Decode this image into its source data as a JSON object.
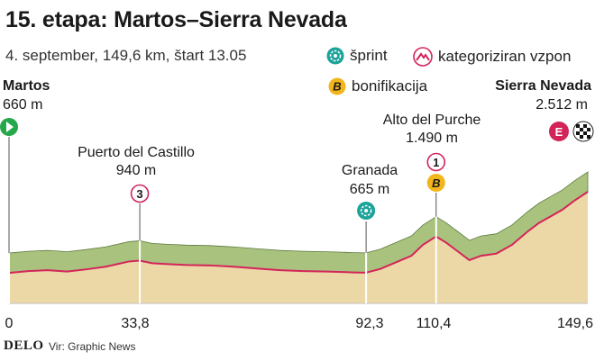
{
  "header": {
    "title": "15. etapa: Martos–Sierra Nevada",
    "subtitle": "4. september, 149,6 km, štart 13.05"
  },
  "legend": {
    "sprint": "šprint",
    "climb": "kategoriziran vzpon",
    "bonus": "bonifikacija"
  },
  "points": {
    "start": {
      "name": "Martos",
      "alt": "660 m"
    },
    "castillo": {
      "name": "Puerto del Castillo",
      "alt": "940 m",
      "category": "3"
    },
    "granada": {
      "name": "Granada",
      "alt": "665 m"
    },
    "purche": {
      "name": "Alto del Purche",
      "alt": "1.490 m",
      "category": "1",
      "bonus": "B"
    },
    "finish": {
      "name": "Sierra Nevada",
      "alt": "2.512 m",
      "category": "E"
    }
  },
  "km_labels": [
    "0",
    "33,8",
    "92,3",
    "110,4",
    "149,6"
  ],
  "footer": {
    "brand": "DELO",
    "source": "Vir: Graphic News"
  },
  "colors": {
    "profile_fill": "#ecd8a6",
    "profile_top": "#a9c37e",
    "profile_dark": "#5d7a3f",
    "profile_line": "#d3245a",
    "sprint": "#1ba39a",
    "bonus": "#f2b61c",
    "start": "#25a84a"
  },
  "chart_data": {
    "type": "area",
    "x_unit": "km",
    "y_unit": "m",
    "xlim": [
      0,
      149.6
    ],
    "x": [
      0,
      5,
      10,
      15,
      20,
      25,
      28,
      31,
      33.8,
      37,
      41,
      46,
      52,
      58,
      64,
      70,
      76,
      82,
      86,
      89,
      92.3,
      96,
      100,
      104,
      107,
      110.4,
      113,
      116,
      119,
      122,
      126,
      130,
      134,
      137,
      140,
      143,
      146,
      149.6
    ],
    "y": [
      660,
      700,
      720,
      690,
      740,
      800,
      860,
      920,
      940,
      880,
      860,
      840,
      830,
      800,
      760,
      720,
      700,
      690,
      680,
      670,
      665,
      750,
      900,
      1050,
      1300,
      1490,
      1350,
      1150,
      950,
      1050,
      1100,
      1300,
      1600,
      1800,
      1950,
      2100,
      2300,
      2512
    ]
  }
}
